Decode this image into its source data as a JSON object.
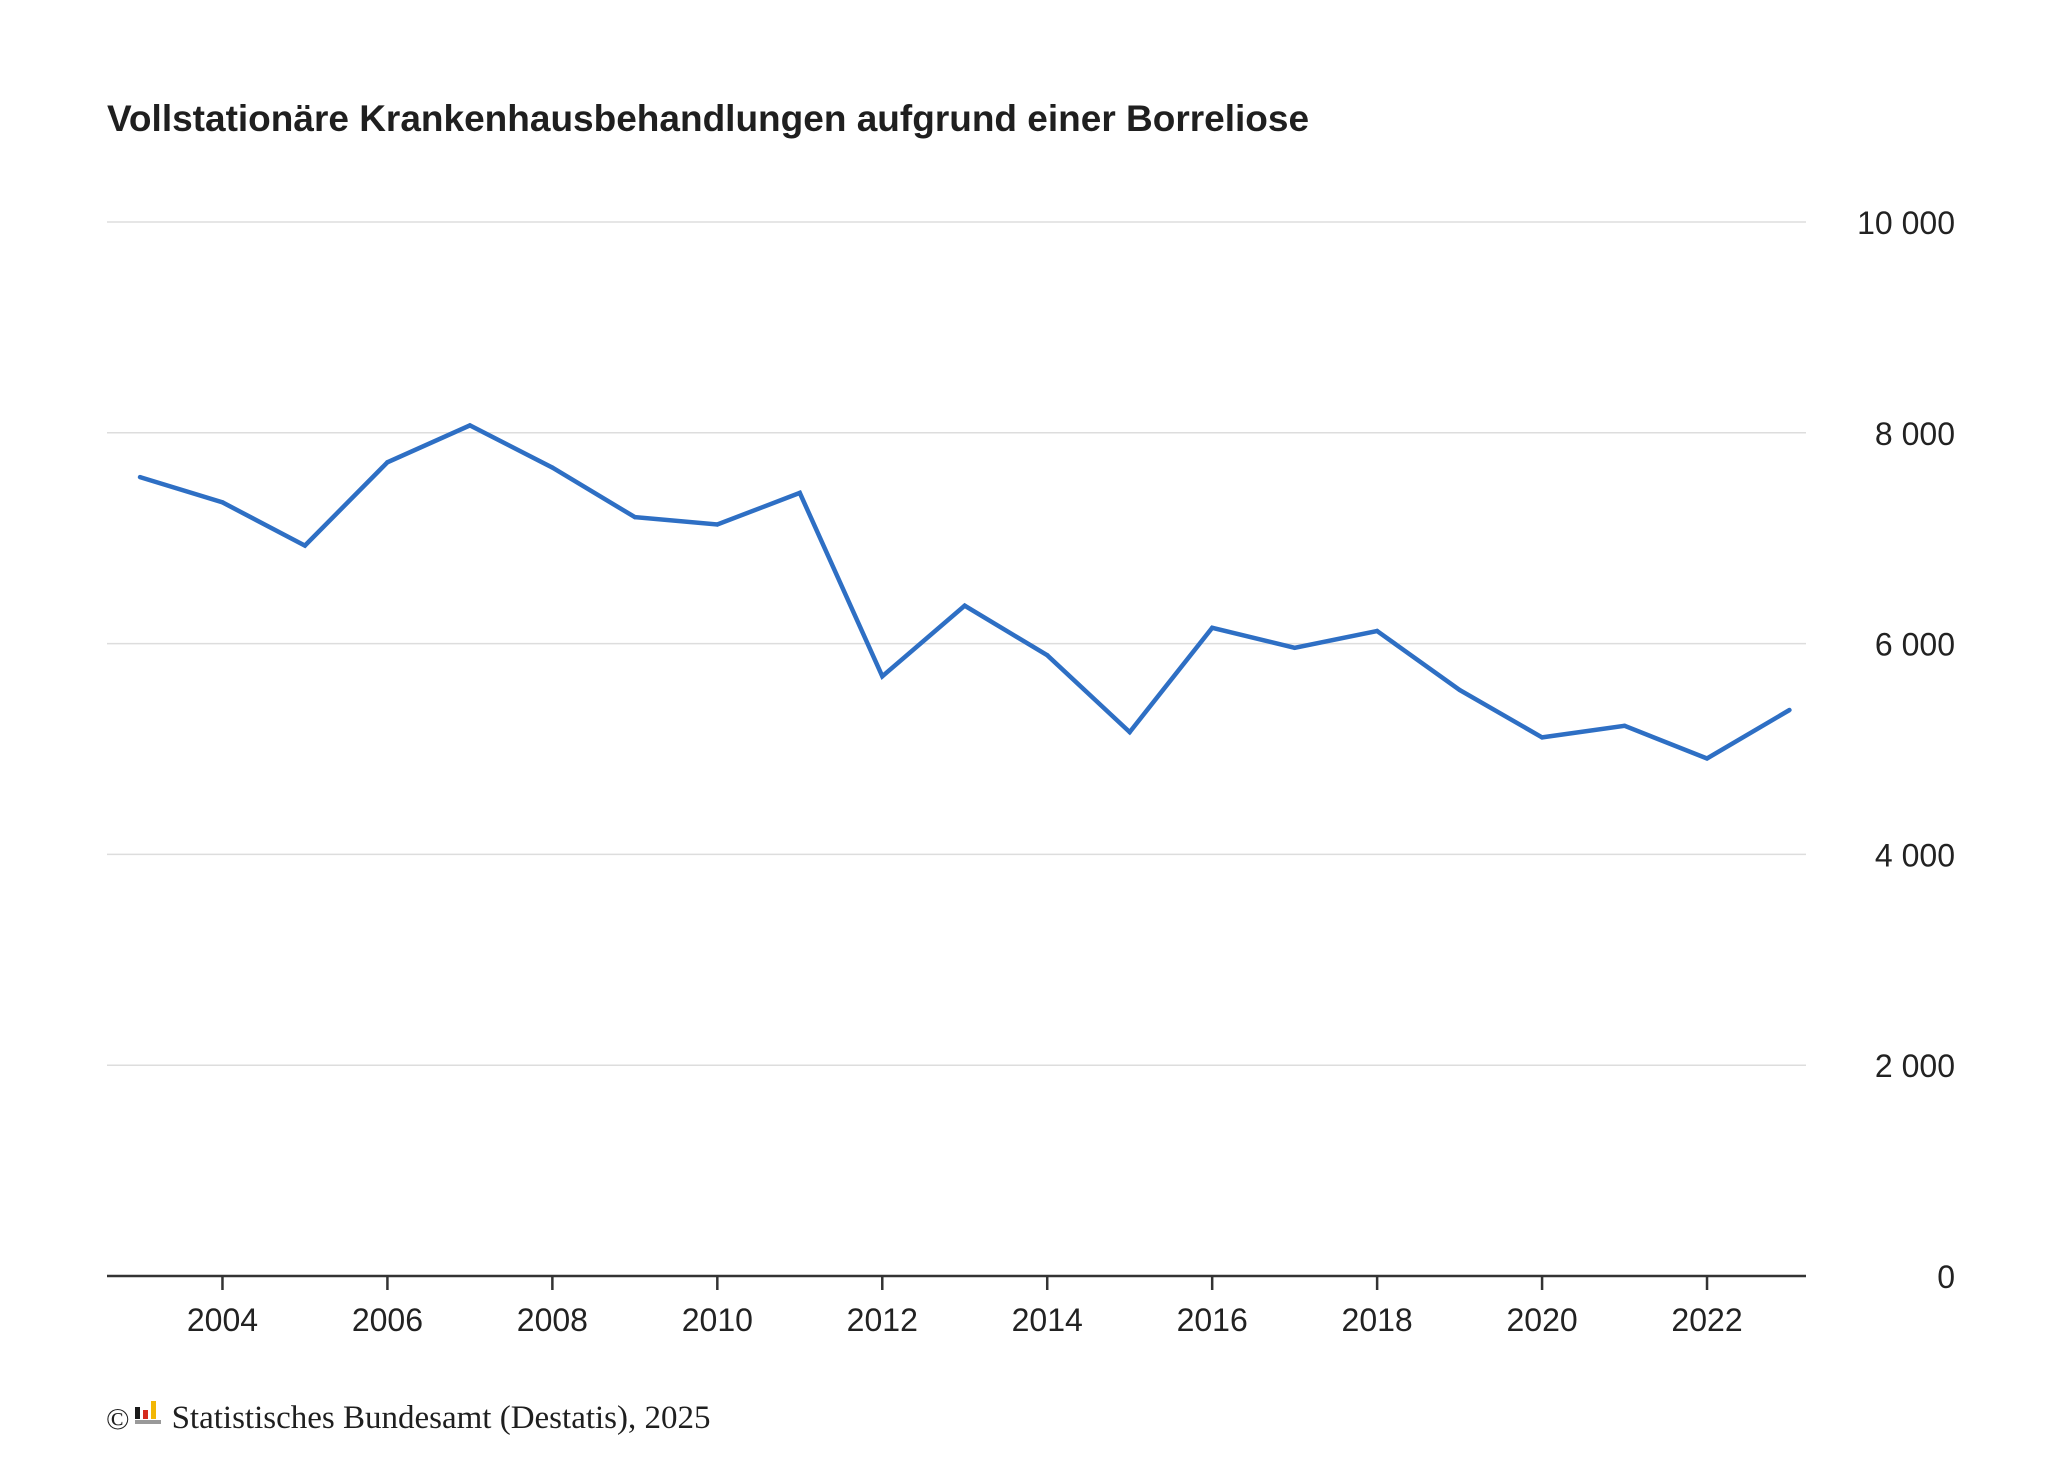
{
  "chart_data": {
    "type": "line",
    "title": "Vollstationäre Krankenhausbehandlungen aufgrund einer Borreliose",
    "xlabel": "",
    "ylabel": "",
    "x": [
      2003,
      2004,
      2005,
      2006,
      2007,
      2008,
      2009,
      2010,
      2011,
      2012,
      2013,
      2014,
      2015,
      2016,
      2017,
      2018,
      2019,
      2020,
      2021,
      2022,
      2023
    ],
    "series": [
      {
        "values": [
          7580,
          7340,
          6930,
          7720,
          8070,
          7670,
          7200,
          7130,
          7430,
          5690,
          6360,
          5890,
          5160,
          6150,
          5960,
          6120,
          5560,
          5110,
          5220,
          4910,
          5370
        ]
      }
    ],
    "xticks": [
      "2004",
      "2006",
      "2008",
      "2010",
      "2012",
      "2014",
      "2016",
      "2018",
      "2020",
      "2022"
    ],
    "yticks": [
      "0",
      "2 000",
      "4 000",
      "6 000",
      "8 000",
      "10 000"
    ],
    "ylim": [
      0,
      10000
    ],
    "xlim": [
      2002.6,
      2023.2
    ],
    "grid": true,
    "line_color": "#2e6fc4",
    "grid_color": "#dddddd",
    "axis_color": "#333333"
  },
  "footer": {
    "copyright_symbol": "©",
    "source": "Statistisches Bundesamt (Destatis), 2025",
    "logo_icon": "destatis-logo-icon"
  }
}
